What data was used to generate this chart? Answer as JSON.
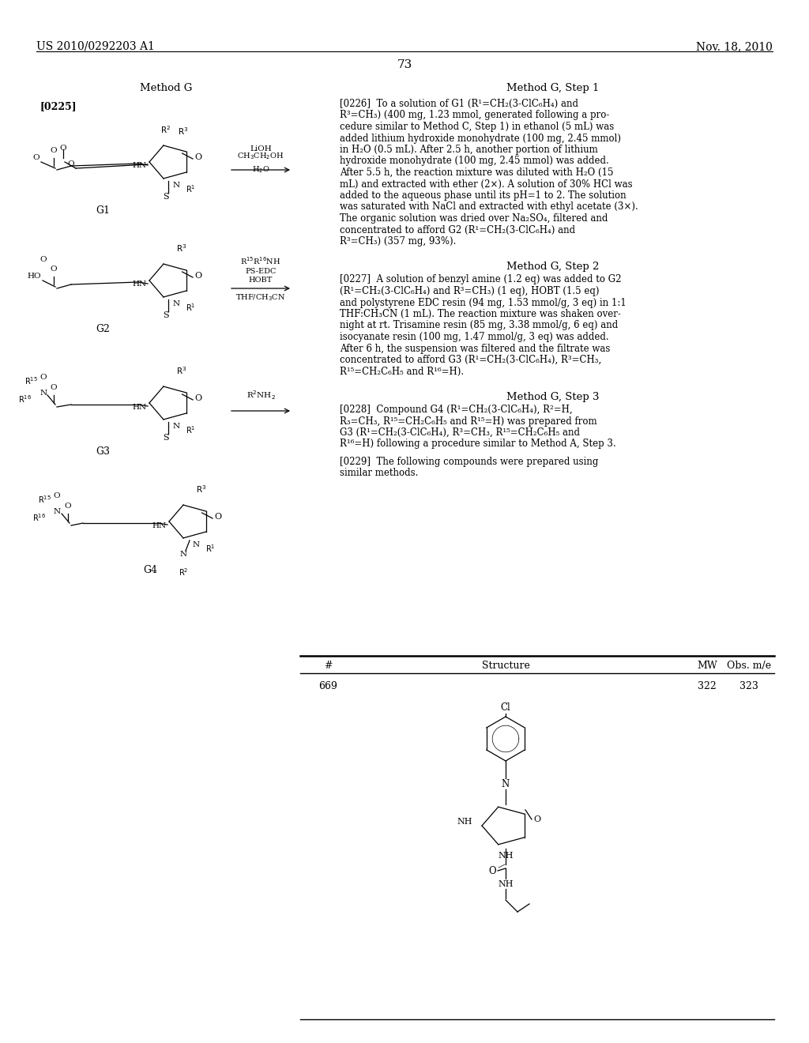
{
  "background_color": "#ffffff",
  "header_left": "US 2010/0292203 A1",
  "header_right": "Nov. 18, 2010",
  "page_number": "73",
  "left_col_title": "Method G",
  "right_col_title_1": "Method G, Step 1",
  "right_col_title_2": "Method G, Step 2",
  "right_col_title_3": "Method G, Step 3",
  "para_0225": "[0225]",
  "para_0226_lines": [
    "[0226]  To a solution of G1 (R¹=CH₂(3-ClC₆H₄) and",
    "R³=CH₃) (400 mg, 1.23 mmol, generated following a pro-",
    "cedure similar to Method C, Step 1) in ethanol (5 mL) was",
    "added lithium hydroxide monohydrate (100 mg, 2.45 mmol)",
    "in H₂O (0.5 mL). After 2.5 h, another portion of lithium",
    "hydroxide monohydrate (100 mg, 2.45 mmol) was added.",
    "After 5.5 h, the reaction mixture was diluted with H₂O (15",
    "mL) and extracted with ether (2×). A solution of 30% HCl was",
    "added to the aqueous phase until its pH=1 to 2. The solution",
    "was saturated with NaCl and extracted with ethyl acetate (3×).",
    "The organic solution was dried over Na₂SO₄, filtered and",
    "concentrated to afford G2 (R¹=CH₂(3-ClC₆H₄) and",
    "R³=CH₃) (357 mg, 93%)."
  ],
  "para_0227_lines": [
    "[0227]  A solution of benzyl amine (1.2 eq) was added to G2",
    "(R¹=CH₂(3-ClC₆H₄) and R³=CH₃) (1 eq), HOBT (1.5 eq)",
    "and polystyrene EDC resin (94 mg, 1.53 mmol/g, 3 eq) in 1:1",
    "THF:CH₃CN (1 mL). The reaction mixture was shaken over-",
    "night at rt. Trisamine resin (85 mg, 3.38 mmol/g, 6 eq) and",
    "isocyanate resin (100 mg, 1.47 mmol/g, 3 eq) was added.",
    "After 6 h, the suspension was filtered and the filtrate was",
    "concentrated to afford G3 (R¹=CH₂(3-ClC₆H₄), R³=CH₃,",
    "R¹⁵=CH₂C₆H₅ and R¹⁶=H)."
  ],
  "para_0228_lines": [
    "[0228]  Compound G4 (R¹=CH₂(3-ClC₆H₄), R²=H,",
    "R₃=CH₃, R¹⁵=CH₂C₆H₅ and R¹⁵=H) was prepared from",
    "G3 (R¹=CH₂(3-ClC₆H₄), R³=CH₃, R¹⁵=CH₂C₆H₅ and",
    "R¹⁶=H) following a procedure similar to Method A, Step 3."
  ],
  "para_0229_lines": [
    "[0229]  The following compounds were prepared using",
    "similar methods."
  ],
  "table_cols": [
    "#",
    "Structure",
    "MW",
    "Obs. m/e"
  ],
  "table_row": [
    "669",
    "",
    "322",
    "323"
  ]
}
